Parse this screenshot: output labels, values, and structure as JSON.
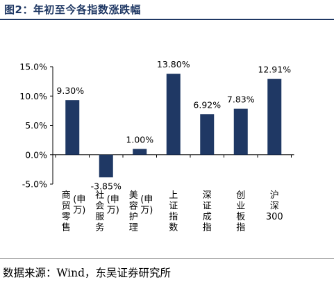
{
  "title": "图2：年初至今各指数涨跌幅",
  "source": "数据来源：Wind，东吴证券研究所",
  "colors": {
    "bar": "#1f3864",
    "title": "#1f3864"
  },
  "chart_data": {
    "type": "bar",
    "categories": [
      [
        "商",
        "贸",
        "零",
        "售",
        "(申",
        "万)"
      ],
      [
        "社",
        "会",
        "服",
        "务",
        "(申",
        "万)"
      ],
      [
        "美",
        "容",
        "护",
        "理",
        "(申",
        "万)"
      ],
      [
        "上",
        "证",
        "指",
        "数"
      ],
      [
        "深",
        "证",
        "成",
        "指"
      ],
      [
        "创",
        "业",
        "板",
        "指"
      ],
      [
        "沪",
        "深",
        "300"
      ]
    ],
    "values": [
      9.3,
      -3.85,
      1.0,
      13.8,
      6.92,
      7.83,
      12.91
    ],
    "value_labels": [
      "9.30%",
      "-3.85%",
      "1.00%",
      "13.80%",
      "6.92%",
      "7.83%",
      "12.91%"
    ],
    "yticks": [
      "15.0%",
      "10.0%",
      "5.0%",
      "0.0%",
      "-5.0%"
    ],
    "ytick_values": [
      15,
      10,
      5,
      0,
      -5
    ],
    "ylim": [
      -5,
      15
    ],
    "grid": false,
    "legend": "none",
    "xlabel": "",
    "ylabel": ""
  }
}
